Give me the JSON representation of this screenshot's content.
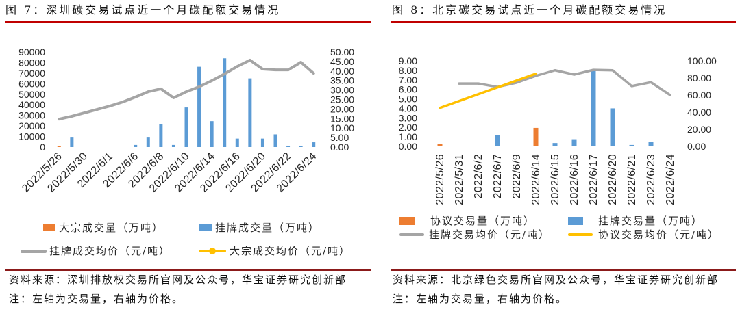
{
  "colors": {
    "title_rule": "#C00000",
    "bottom_rule": "#8B1A1A"
  },
  "panels": [
    {
      "source": "资料来源：深圳排放权交易所官网及公众号，华宝证券研究创新部",
      "note": "注：左轴为交易量，右轴为价格。"
    },
    {
      "source": "资料来源：北京绿色交易所官网及公众号，华宝证券研究创新部",
      "note": "注：左轴为交易量，右轴为价格。"
    }
  ],
  "chart_data": [
    {
      "type": "bar",
      "title": "图 7：深圳碳交易试点近一个月碳配额交易情况",
      "categories": [
        "2022/5/26",
        "",
        "2022/5/30",
        "",
        "2022/6/1",
        "",
        "2022/6/6",
        "",
        "2022/6/8",
        "",
        "2022/6/10",
        "",
        "2022/6/14",
        "",
        "2022/6/16",
        "",
        "2022/6/20",
        "",
        "2022/6/22",
        "",
        "2022/6/24"
      ],
      "ylim": [
        0,
        90000
      ],
      "y2lim": [
        0,
        50
      ],
      "y_ticks": [
        "0",
        "10000",
        "20000",
        "30000",
        "40000",
        "50000",
        "60000",
        "70000",
        "80000",
        "90000"
      ],
      "y2_ticks": [
        "0.00",
        "5.00",
        "10.00",
        "15.00",
        "20.00",
        "25.00",
        "30.00",
        "35.00",
        "40.00",
        "45.00",
        "50.00"
      ],
      "grid": false,
      "legend_position": "bottom",
      "series": [
        {
          "name": "大宗成交量（万吨）",
          "type": "bar",
          "axis": "left",
          "color": "#ED7D31",
          "values": [
            500,
            0,
            0,
            0,
            0,
            0,
            0,
            0,
            0,
            0,
            0,
            0,
            0,
            0,
            0,
            0,
            0,
            0,
            0,
            0,
            0
          ]
        },
        {
          "name": "挂牌成交量（万吨）",
          "type": "bar",
          "axis": "left",
          "color": "#5B9BD5",
          "values": [
            0,
            9000,
            0,
            0,
            0,
            0,
            2000,
            9000,
            22000,
            2000,
            37500,
            76000,
            24500,
            84000,
            8000,
            65000,
            8000,
            12000,
            1300,
            700,
            4500
          ]
        },
        {
          "name": "挂牌成交均价（元/吨）",
          "type": "line",
          "axis": "right",
          "color": "#A5A5A5",
          "values": [
            14.7,
            16.2,
            18.0,
            19.8,
            21.6,
            23.7,
            26.3,
            29.1,
            30.6,
            25.9,
            29.1,
            31.7,
            34.9,
            38.5,
            42.4,
            45.7,
            41.0,
            40.6,
            40.6,
            44.6,
            38.8
          ]
        },
        {
          "name": "大宗成交均价（元/吨）",
          "type": "line",
          "axis": "right",
          "color": "#FFC000",
          "marker": "circle",
          "values": [
            null,
            null,
            null,
            null,
            null,
            null,
            null,
            null,
            null,
            null,
            null,
            null,
            null,
            null,
            null,
            null,
            null,
            null,
            null,
            null,
            null
          ]
        }
      ]
    },
    {
      "type": "bar",
      "title": "图 8：北京碳交易试点近一个月碳配额交易情况",
      "categories": [
        "2022/5/26",
        "2022/5/31",
        "2022/6/2",
        "2022/6/7",
        "2022/6/9",
        "2022/6/14",
        "2022/6/15",
        "2022/6/16",
        "2022/6/17",
        "2022/6/20",
        "2022/6/21",
        "2022/6/23",
        "2022/6/24"
      ],
      "ylim": [
        0,
        9
      ],
      "y2lim": [
        0,
        100
      ],
      "y_ticks": [
        "0.00",
        "1.00",
        "2.00",
        "3.00",
        "4.00",
        "5.00",
        "6.00",
        "7.00",
        "8.00",
        "9.00"
      ],
      "y2_ticks": [
        "0.00",
        "20.00",
        "40.00",
        "60.00",
        "80.00",
        "100.00"
      ],
      "grid": false,
      "legend_position": "bottom",
      "series": [
        {
          "name": "协议交易量（万吨）",
          "type": "bar",
          "axis": "left",
          "color": "#ED7D31",
          "values": [
            0.25,
            0,
            0,
            0,
            0,
            1.95,
            0,
            0,
            0,
            0,
            0,
            0,
            0
          ]
        },
        {
          "name": "挂牌交易量（万吨）",
          "type": "bar",
          "axis": "left",
          "color": "#5B9BD5",
          "values": [
            0,
            0.02,
            0.02,
            1.2,
            0,
            0,
            0.35,
            0.75,
            8.1,
            4.0,
            0.15,
            0.45,
            0.05
          ]
        },
        {
          "name": "挂牌交易均价（元/吨）",
          "type": "line",
          "axis": "right",
          "color": "#A5A5A5",
          "values": [
            null,
            73.5,
            73.5,
            69.5,
            74.5,
            82.5,
            89.0,
            84.0,
            89.5,
            89.0,
            70.5,
            75.0,
            60.0
          ]
        },
        {
          "name": "协议交易均价（元/吨）",
          "type": "line",
          "axis": "right",
          "color": "#FFC000",
          "values": [
            45,
            null,
            null,
            null,
            null,
            85,
            null,
            null,
            null,
            null,
            null,
            null,
            null
          ]
        }
      ]
    }
  ]
}
